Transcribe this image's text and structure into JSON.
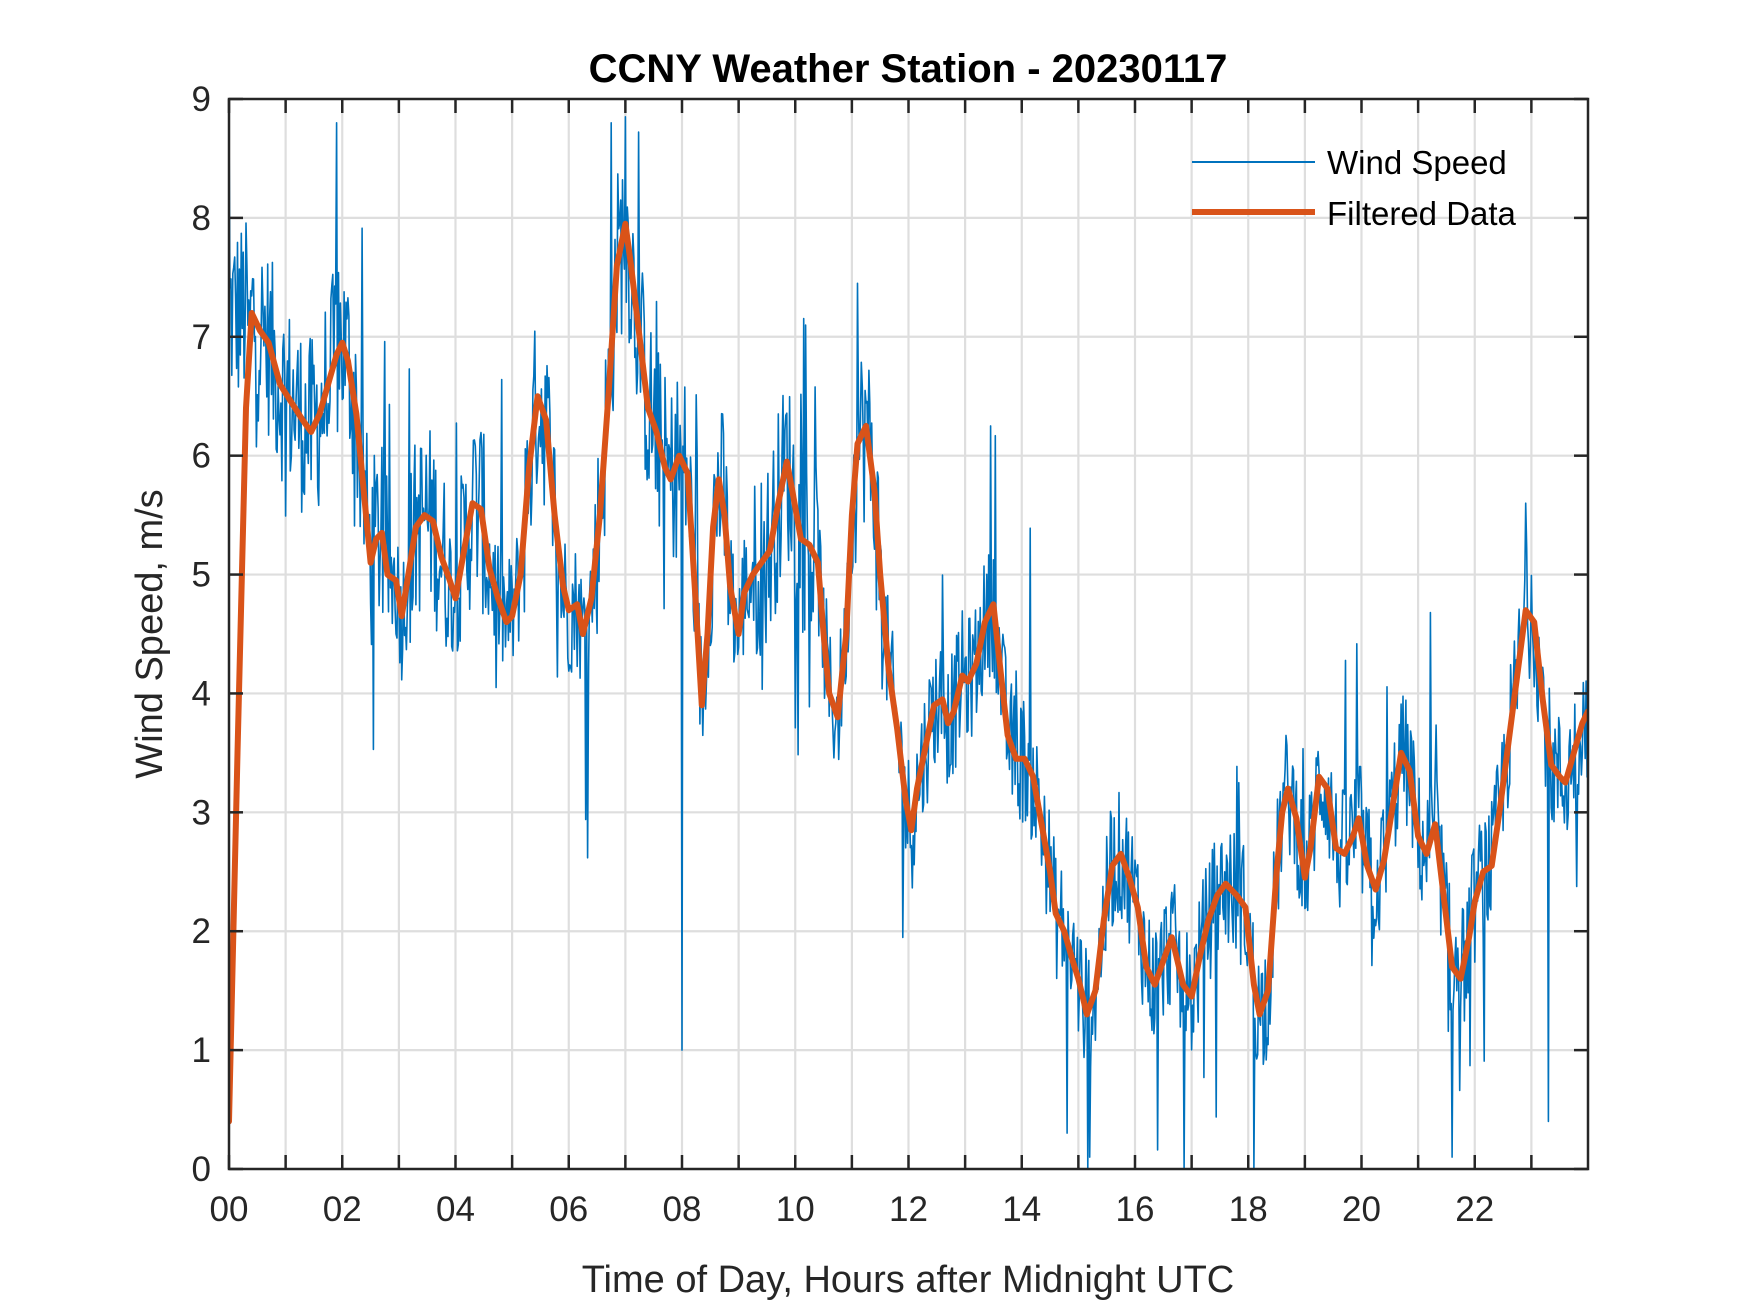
{
  "chart_data": {
    "type": "line",
    "title": "CCNY Weather Station - 20230117",
    "xlabel": "Time of Day, Hours after Midnight UTC",
    "ylabel": "Wind Speed, m/s",
    "xlim": [
      0,
      24
    ],
    "ylim": [
      0,
      9
    ],
    "xticks": [
      0,
      1,
      2,
      3,
      4,
      5,
      6,
      7,
      8,
      9,
      10,
      11,
      12,
      13,
      14,
      15,
      16,
      17,
      18,
      19,
      20,
      21,
      22,
      23
    ],
    "xtick_labels": [
      "00",
      "",
      "02",
      "",
      "04",
      "",
      "06",
      "",
      "08",
      "",
      "10",
      "",
      "12",
      "",
      "14",
      "",
      "16",
      "",
      "18",
      "",
      "20",
      "",
      "22",
      ""
    ],
    "yticks": [
      0,
      1,
      2,
      3,
      4,
      5,
      6,
      7,
      8,
      9
    ],
    "ytick_labels": [
      "0",
      "1",
      "2",
      "3",
      "4",
      "5",
      "6",
      "7",
      "8",
      "9"
    ],
    "grid": true,
    "legend_position": "top-right",
    "series": [
      {
        "name": "Wind Speed",
        "color": "#0072BD",
        "style": "thin",
        "description": "raw 1-minute samples, noisy around the filtered curve",
        "envelope": {
          "min": 0.0,
          "max": 8.85
        },
        "notable_spikes": [
          {
            "x": 0.0,
            "y": 8.85
          },
          {
            "x": 1.9,
            "y": 8.8
          },
          {
            "x": 6.75,
            "y": 8.8
          },
          {
            "x": 8.0,
            "y": 1.0
          },
          {
            "x": 11.1,
            "y": 7.45
          },
          {
            "x": 13.45,
            "y": 6.25
          },
          {
            "x": 15.2,
            "y": 0.1
          },
          {
            "x": 18.1,
            "y": 0.0
          },
          {
            "x": 21.6,
            "y": 0.1
          },
          {
            "x": 22.9,
            "y": 5.6
          },
          {
            "x": 23.3,
            "y": 0.4
          }
        ]
      },
      {
        "name": "Filtered Data",
        "color": "#D95319",
        "style": "thick",
        "x": [
          0.0,
          0.15,
          0.3,
          0.4,
          0.55,
          0.7,
          0.9,
          1.1,
          1.3,
          1.45,
          1.6,
          1.75,
          1.9,
          2.0,
          2.1,
          2.25,
          2.4,
          2.5,
          2.6,
          2.7,
          2.8,
          2.95,
          3.05,
          3.15,
          3.3,
          3.45,
          3.6,
          3.75,
          3.9,
          4.0,
          4.15,
          4.3,
          4.45,
          4.6,
          4.75,
          4.9,
          5.0,
          5.15,
          5.3,
          5.45,
          5.6,
          5.75,
          5.9,
          6.0,
          6.15,
          6.25,
          6.4,
          6.55,
          6.7,
          6.85,
          7.0,
          7.1,
          7.25,
          7.4,
          7.55,
          7.7,
          7.8,
          7.95,
          8.1,
          8.25,
          8.35,
          8.45,
          8.55,
          8.65,
          8.75,
          8.85,
          9.0,
          9.1,
          9.25,
          9.4,
          9.55,
          9.7,
          9.85,
          9.95,
          10.1,
          10.25,
          10.4,
          10.5,
          10.6,
          10.75,
          10.9,
          11.0,
          11.1,
          11.25,
          11.4,
          11.5,
          11.65,
          11.8,
          11.95,
          12.05,
          12.15,
          12.3,
          12.45,
          12.6,
          12.7,
          12.8,
          12.95,
          13.05,
          13.2,
          13.35,
          13.5,
          13.6,
          13.75,
          13.9,
          14.05,
          14.2,
          14.35,
          14.5,
          14.6,
          14.75,
          14.9,
          15.0,
          15.15,
          15.3,
          15.45,
          15.6,
          15.75,
          15.9,
          16.05,
          16.2,
          16.35,
          16.5,
          16.65,
          16.75,
          16.85,
          17.0,
          17.15,
          17.3,
          17.45,
          17.6,
          17.8,
          17.95,
          18.1,
          18.2,
          18.35,
          18.5,
          18.6,
          18.7,
          18.85,
          19.0,
          19.1,
          19.25,
          19.4,
          19.55,
          19.7,
          19.85,
          19.95,
          20.1,
          20.25,
          20.4,
          20.55,
          20.7,
          20.85,
          21.0,
          21.15,
          21.3,
          21.45,
          21.6,
          21.75,
          21.9,
          22.0,
          22.15,
          22.3,
          22.45,
          22.6,
          22.75,
          22.9,
          23.05,
          23.2,
          23.35,
          23.5,
          23.6,
          23.75,
          23.9,
          24.0
        ],
        "values": [
          0.4,
          3.5,
          6.4,
          7.2,
          7.05,
          6.95,
          6.6,
          6.45,
          6.3,
          6.2,
          6.35,
          6.6,
          6.85,
          6.95,
          6.8,
          6.35,
          5.6,
          5.1,
          5.3,
          5.35,
          5.0,
          4.95,
          4.65,
          4.95,
          5.4,
          5.5,
          5.45,
          5.15,
          4.95,
          4.8,
          5.2,
          5.6,
          5.55,
          5.05,
          4.8,
          4.6,
          4.65,
          5.0,
          5.9,
          6.5,
          6.3,
          5.5,
          4.9,
          4.7,
          4.75,
          4.5,
          4.8,
          5.5,
          6.5,
          7.6,
          7.95,
          7.6,
          7.0,
          6.4,
          6.2,
          5.9,
          5.8,
          6.0,
          5.85,
          4.7,
          3.9,
          4.5,
          5.4,
          5.8,
          5.5,
          4.9,
          4.5,
          4.85,
          5.0,
          5.1,
          5.2,
          5.6,
          5.95,
          5.7,
          5.3,
          5.25,
          5.1,
          4.5,
          4.0,
          3.8,
          4.5,
          5.5,
          6.1,
          6.25,
          5.7,
          5.0,
          4.2,
          3.7,
          3.1,
          2.85,
          3.2,
          3.55,
          3.9,
          3.95,
          3.75,
          3.85,
          4.15,
          4.1,
          4.25,
          4.6,
          4.75,
          4.3,
          3.65,
          3.45,
          3.45,
          3.3,
          2.9,
          2.5,
          2.15,
          2.0,
          1.75,
          1.6,
          1.3,
          1.5,
          2.1,
          2.55,
          2.65,
          2.45,
          2.2,
          1.7,
          1.55,
          1.75,
          1.95,
          1.75,
          1.55,
          1.45,
          1.8,
          2.1,
          2.3,
          2.4,
          2.3,
          2.2,
          1.55,
          1.3,
          1.5,
          2.5,
          3.0,
          3.2,
          2.95,
          2.45,
          2.7,
          3.3,
          3.2,
          2.7,
          2.65,
          2.8,
          2.95,
          2.55,
          2.35,
          2.6,
          3.05,
          3.5,
          3.35,
          2.8,
          2.65,
          2.9,
          2.3,
          1.7,
          1.6,
          1.95,
          2.25,
          2.5,
          2.55,
          3.05,
          3.6,
          4.15,
          4.7,
          4.6,
          3.95,
          3.4,
          3.3,
          3.25,
          3.5,
          3.75,
          3.85
        ]
      }
    ]
  }
}
